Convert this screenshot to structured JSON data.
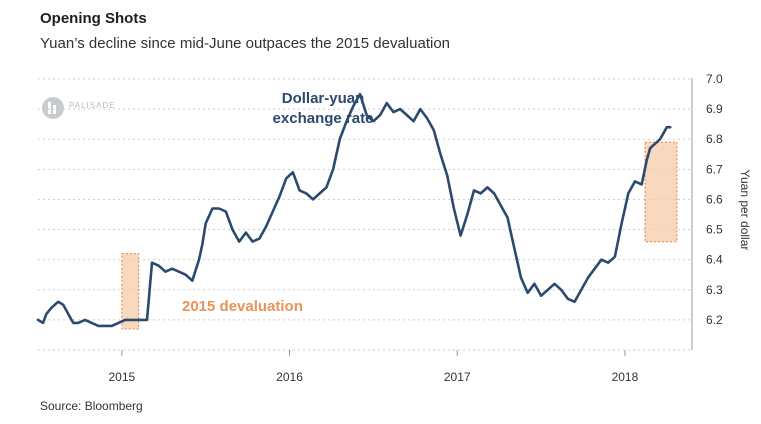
{
  "header": {
    "title": "Opening Shots",
    "subtitle": "Yuan’s decline since mid-June outpaces the 2015 devaluation"
  },
  "footer": {
    "source": "Source: Bloomberg"
  },
  "logo": {
    "text": "PALISADE",
    "icon": "palisade-logo-icon"
  },
  "colors": {
    "line": "#2c4a6e",
    "highlight": "#f6cba9",
    "highlight_border": "#e8935a",
    "annotation": "#e8935a",
    "grid": "#cfcfcf"
  },
  "chart_data": {
    "type": "line",
    "title": "Opening Shots",
    "subtitle": "Yuan’s decline since mid-June outpaces the 2015 devaluation",
    "xlabel": "",
    "ylabel": "Yuan per dollar",
    "ylim": [
      6.1,
      7.0
    ],
    "yticks": [
      6.2,
      6.3,
      6.4,
      6.5,
      6.6,
      6.7,
      6.8,
      6.9,
      7.0
    ],
    "xlim": [
      2014.5,
      2018.4
    ],
    "xticks": [
      2015,
      2016,
      2017,
      2018
    ],
    "xtick_labels": [
      "2015",
      "2016",
      "2017",
      "2018"
    ],
    "grid": true,
    "series": [
      {
        "name": "Dollar-yuan exchange rate",
        "x": [
          2014.5,
          2014.53,
          2014.55,
          2014.58,
          2014.62,
          2014.65,
          2014.68,
          2014.71,
          2014.74,
          2014.78,
          2014.82,
          2014.86,
          2014.9,
          2014.94,
          2014.98,
          2015.02,
          2015.06,
          2015.1,
          2015.12,
          2015.15,
          2015.18,
          2015.22,
          2015.26,
          2015.3,
          2015.34,
          2015.38,
          2015.42,
          2015.46,
          2015.48,
          2015.5,
          2015.54,
          2015.58,
          2015.62,
          2015.66,
          2015.7,
          2015.74,
          2015.78,
          2015.82,
          2015.86,
          2015.9,
          2015.94,
          2015.98,
          2016.02,
          2016.06,
          2016.1,
          2016.14,
          2016.18,
          2016.22,
          2016.26,
          2016.3,
          2016.34,
          2016.38,
          2016.42,
          2016.46,
          2016.5,
          2016.54,
          2016.58,
          2016.62,
          2016.66,
          2016.7,
          2016.74,
          2016.78,
          2016.82,
          2016.86,
          2016.9,
          2016.94,
          2016.98,
          2017.02,
          2017.06,
          2017.1,
          2017.14,
          2017.18,
          2017.22,
          2017.26,
          2017.3,
          2017.34,
          2017.38,
          2017.42,
          2017.46,
          2017.5,
          2017.54,
          2017.58,
          2017.62,
          2017.66,
          2017.7,
          2017.74,
          2017.78,
          2017.82,
          2017.86,
          2017.9,
          2017.94,
          2017.98,
          2018.02,
          2018.06,
          2018.1,
          2018.13,
          2018.15,
          2018.17,
          2018.19,
          2018.21,
          2018.23,
          2018.25,
          2018.27
        ],
        "values": [
          6.2,
          6.19,
          6.22,
          6.24,
          6.26,
          6.25,
          6.22,
          6.19,
          6.19,
          6.2,
          6.19,
          6.18,
          6.18,
          6.18,
          6.19,
          6.2,
          6.2,
          6.2,
          6.2,
          6.2,
          6.39,
          6.38,
          6.36,
          6.37,
          6.36,
          6.35,
          6.33,
          6.4,
          6.45,
          6.52,
          6.57,
          6.57,
          6.56,
          6.5,
          6.46,
          6.49,
          6.46,
          6.47,
          6.51,
          6.56,
          6.61,
          6.67,
          6.69,
          6.63,
          6.62,
          6.6,
          6.62,
          6.64,
          6.7,
          6.8,
          6.86,
          6.91,
          6.95,
          6.88,
          6.86,
          6.88,
          6.92,
          6.89,
          6.9,
          6.88,
          6.86,
          6.9,
          6.87,
          6.83,
          6.75,
          6.68,
          6.57,
          6.48,
          6.55,
          6.63,
          6.62,
          6.64,
          6.62,
          6.58,
          6.54,
          6.44,
          6.34,
          6.29,
          6.32,
          6.28,
          6.3,
          6.32,
          6.3,
          6.27,
          6.26,
          6.3,
          6.34,
          6.37,
          6.4,
          6.39,
          6.41,
          6.52,
          6.62,
          6.66,
          6.65,
          6.73,
          6.77,
          6.78,
          6.79,
          6.8,
          6.82,
          6.84,
          6.84
        ]
      }
    ],
    "annotations": [
      {
        "text": "Dollar-yuan exchange rate",
        "line1": "Dollar-yuan",
        "line2": "exchange rate",
        "at": [
          2016.25,
          6.93
        ]
      },
      {
        "text": "2015 devaluation",
        "x_range": [
          2015.0,
          2015.1
        ],
        "y_range": [
          6.17,
          6.42
        ]
      }
    ],
    "highlight_boxes": [
      {
        "label": "2015 devaluation",
        "x_range": [
          2015.0,
          2015.1
        ],
        "y_range": [
          6.17,
          6.42
        ]
      },
      {
        "label": "",
        "x_range": [
          2018.12,
          2018.31
        ],
        "y_range": [
          6.46,
          6.79
        ]
      }
    ]
  }
}
